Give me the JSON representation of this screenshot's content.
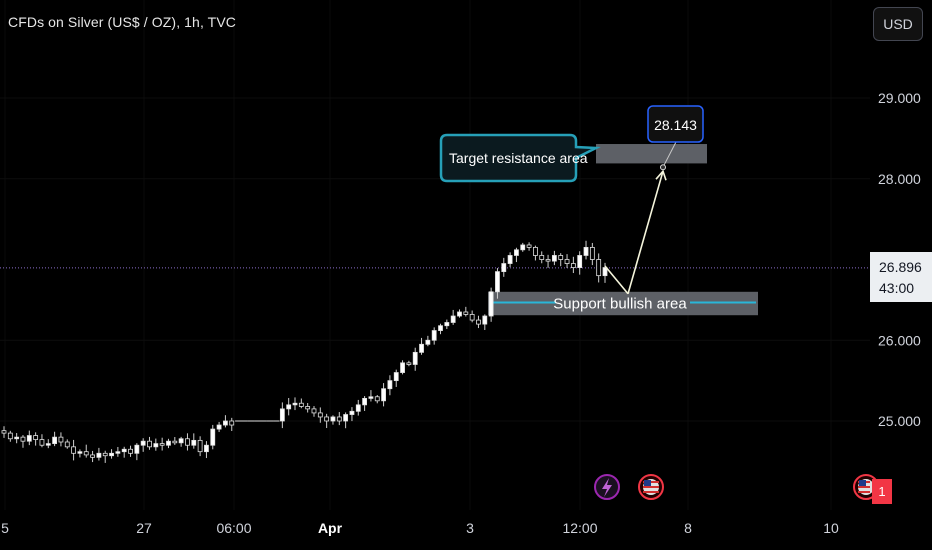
{
  "title": "CFDs on Silver (US$ / OZ), 1h, TVC",
  "currency_button": "USD",
  "last_price": "26.896",
  "countdown": "43:00",
  "event_badge_count": "1",
  "annotations": {
    "target_label": "Target resistance area",
    "target_price": "28.143",
    "support_label": "Support bullish area"
  },
  "colors": {
    "background": "#000000",
    "candle": "#e0e0e0",
    "callout_border": "#26a0b8",
    "support_line": "#29b6d8",
    "price_box_border": "#2962ff",
    "zone_fill": "#5d6066",
    "badge": "#f23645"
  },
  "icons": {
    "flash_event": "lightning-icon",
    "us_flag_event": "us-flag-icon"
  },
  "chart_data": {
    "type": "candlestick",
    "title": "CFDs on Silver (US$ / OZ), 1h, TVC",
    "y_ticks": [
      "29.000",
      "28.000",
      "26.000",
      "25.000"
    ],
    "y_tick_values": [
      29,
      28,
      26,
      25
    ],
    "x_ticks": [
      "5",
      "27",
      "06:00",
      "Apr",
      "3",
      "12:00",
      "8",
      "10"
    ],
    "ylim": [
      24.0,
      29.6
    ],
    "close_path": [
      24.85,
      24.78,
      24.8,
      24.75,
      24.82,
      24.77,
      24.7,
      24.72,
      24.8,
      24.74,
      24.68,
      24.6,
      24.62,
      24.58,
      24.55,
      24.6,
      24.57,
      24.6,
      24.62,
      24.65,
      24.6,
      24.7,
      24.75,
      24.68,
      24.72,
      24.7,
      24.75,
      24.73,
      24.78,
      24.7,
      24.76,
      24.62,
      24.7,
      24.9,
      24.95,
      25.0,
      24.95,
      25.0,
      25.0,
      25.0,
      25.0,
      25.0,
      25.0,
      25.0,
      25.15,
      25.2,
      25.22,
      25.18,
      25.15,
      25.1,
      25.05,
      25.0,
      25.05,
      25.0,
      25.08,
      25.12,
      25.2,
      25.28,
      25.3,
      25.25,
      25.4,
      25.5,
      25.6,
      25.72,
      25.7,
      25.85,
      25.95,
      26.0,
      26.12,
      26.18,
      26.22,
      26.3,
      26.35,
      26.32,
      26.25,
      26.2,
      26.3,
      26.6,
      26.85,
      26.95,
      27.05,
      27.12,
      27.18,
      27.15,
      27.05,
      27.0,
      26.98,
      27.05,
      27.0,
      26.95,
      26.9,
      27.05,
      27.15,
      27.0,
      26.8,
      26.9
    ],
    "last_price": 26.896,
    "support_zone": [
      26.31,
      26.6
    ],
    "target_zone": [
      28.19,
      28.43
    ],
    "target_point": 28.143,
    "arrow_from_value": 26.92
  }
}
